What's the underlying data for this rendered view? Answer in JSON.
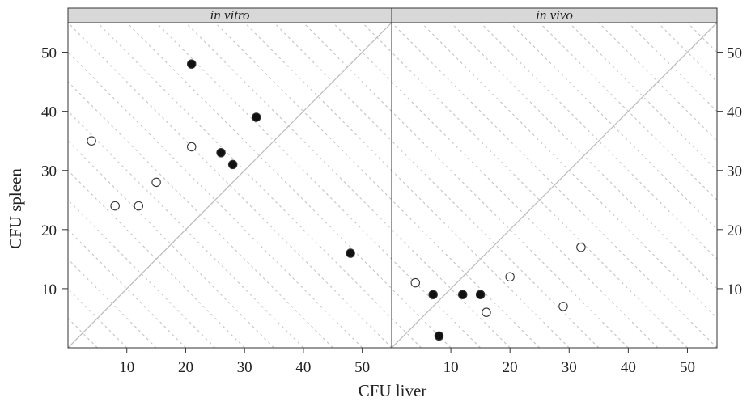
{
  "chart_data": {
    "type": "scatter",
    "xlabel": "CFU liver",
    "ylabel": "CFU spleen",
    "xlim": [
      0,
      55
    ],
    "ylim": [
      0,
      55
    ],
    "x_ticks": [
      10,
      20,
      30,
      40,
      50
    ],
    "y_ticks": [
      10,
      20,
      30,
      40,
      50
    ],
    "reference_lines": "identity line y = x plus dashed diagonals x + y = constant",
    "marker_styles": [
      "filled",
      "open"
    ],
    "panels": [
      {
        "label": "in vitro",
        "points": [
          {
            "x": 4,
            "y": 35,
            "filled": false
          },
          {
            "x": 8,
            "y": 24,
            "filled": false
          },
          {
            "x": 12,
            "y": 24,
            "filled": false
          },
          {
            "x": 15,
            "y": 28,
            "filled": false
          },
          {
            "x": 21,
            "y": 34,
            "filled": false
          },
          {
            "x": 21,
            "y": 48,
            "filled": true
          },
          {
            "x": 26,
            "y": 33,
            "filled": true
          },
          {
            "x": 28,
            "y": 31,
            "filled": true
          },
          {
            "x": 32,
            "y": 39,
            "filled": true
          },
          {
            "x": 48,
            "y": 16,
            "filled": true
          }
        ]
      },
      {
        "label": "in vivo",
        "points": [
          {
            "x": 4,
            "y": 11,
            "filled": false
          },
          {
            "x": 16,
            "y": 6,
            "filled": false
          },
          {
            "x": 20,
            "y": 12,
            "filled": false
          },
          {
            "x": 29,
            "y": 7,
            "filled": false
          },
          {
            "x": 32,
            "y": 17,
            "filled": false
          },
          {
            "x": 7,
            "y": 9,
            "filled": true
          },
          {
            "x": 8,
            "y": 2,
            "filled": true
          },
          {
            "x": 12,
            "y": 9,
            "filled": true
          },
          {
            "x": 15,
            "y": 9,
            "filled": true
          }
        ]
      }
    ]
  }
}
